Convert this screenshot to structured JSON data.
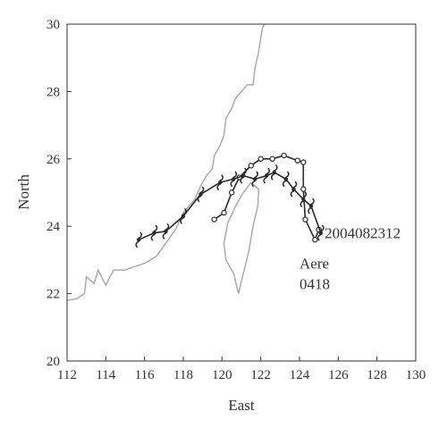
{
  "chart_data": {
    "type": "line",
    "xlabel": "East",
    "ylabel": "North",
    "xlim": [
      112,
      130
    ],
    "ylim": [
      20,
      30
    ],
    "xticks": [
      112,
      114,
      116,
      118,
      120,
      122,
      124,
      126,
      128,
      130
    ],
    "yticks": [
      20,
      22,
      24,
      26,
      28,
      30
    ],
    "grid": false,
    "colors": {
      "coastline": "#a6a6a6",
      "track": "#2b2b2b",
      "axis": "#333333"
    },
    "series": [
      {
        "marker": "circle",
        "points": [
          [
            125.0,
            23.9
          ],
          [
            124.8,
            23.6
          ],
          [
            124.3,
            24.2
          ],
          [
            124.2,
            25.1
          ],
          [
            124.2,
            25.9
          ],
          [
            123.9,
            25.95
          ],
          [
            123.2,
            26.1
          ],
          [
            122.6,
            26.0
          ],
          [
            122.0,
            26.0
          ],
          [
            121.5,
            25.8
          ],
          [
            120.9,
            25.45
          ],
          [
            120.5,
            25.0
          ],
          [
            120.1,
            24.4
          ],
          [
            119.6,
            24.2
          ]
        ]
      },
      {
        "marker": "typhoon",
        "points": [
          [
            125.1,
            23.8
          ],
          [
            124.6,
            24.6
          ],
          [
            124.2,
            24.8
          ],
          [
            123.7,
            25.1
          ],
          [
            123.3,
            25.4
          ],
          [
            122.7,
            25.6
          ],
          [
            122.3,
            25.5
          ],
          [
            121.7,
            25.4
          ],
          [
            121.1,
            25.5
          ],
          [
            120.6,
            25.4
          ],
          [
            119.9,
            25.3
          ],
          [
            118.9,
            24.95
          ],
          [
            118.0,
            24.3
          ],
          [
            117.1,
            23.85
          ],
          [
            116.5,
            23.8
          ],
          [
            115.7,
            23.6
          ]
        ]
      }
    ],
    "coastline": [
      [
        112.0,
        21.8
      ],
      [
        112.5,
        21.85
      ],
      [
        112.9,
        22.0
      ],
      [
        113.0,
        22.5
      ],
      [
        113.4,
        22.3
      ],
      [
        113.6,
        22.7
      ],
      [
        114.0,
        22.25
      ],
      [
        114.4,
        22.7
      ],
      [
        115.0,
        22.7
      ],
      [
        115.5,
        22.8
      ],
      [
        116.0,
        22.9
      ],
      [
        116.6,
        23.1
      ],
      [
        117.1,
        23.5
      ],
      [
        117.6,
        23.9
      ],
      [
        118.0,
        24.4
      ],
      [
        118.6,
        24.8
      ],
      [
        118.9,
        25.2
      ],
      [
        119.2,
        25.5
      ],
      [
        119.5,
        25.7
      ],
      [
        119.6,
        26.1
      ],
      [
        119.9,
        26.4
      ],
      [
        120.1,
        26.7
      ],
      [
        120.2,
        27.2
      ],
      [
        120.5,
        27.5
      ],
      [
        120.7,
        27.8
      ],
      [
        121.0,
        28.0
      ],
      [
        121.3,
        28.2
      ],
      [
        121.6,
        28.2
      ],
      [
        121.7,
        28.7
      ],
      [
        121.9,
        29.2
      ],
      [
        122.0,
        29.6
      ],
      [
        122.1,
        29.9
      ],
      [
        122.2,
        30.0
      ]
    ],
    "island": [
      [
        121.5,
        25.3
      ],
      [
        121.9,
        25.1
      ],
      [
        121.85,
        24.6
      ],
      [
        121.6,
        24.0
      ],
      [
        121.4,
        23.3
      ],
      [
        121.1,
        22.6
      ],
      [
        120.85,
        22.0
      ],
      [
        120.6,
        22.6
      ],
      [
        120.2,
        23.0
      ],
      [
        120.1,
        23.5
      ],
      [
        120.3,
        24.1
      ],
      [
        120.7,
        24.6
      ],
      [
        121.1,
        25.0
      ],
      [
        121.5,
        25.3
      ]
    ],
    "annotations": [
      {
        "text": "2004082312",
        "x": 125.3,
        "y": 23.8
      },
      {
        "text": "Aere",
        "x": 124.0,
        "y": 22.9
      },
      {
        "text": "0418",
        "x": 124.0,
        "y": 22.3
      }
    ]
  }
}
